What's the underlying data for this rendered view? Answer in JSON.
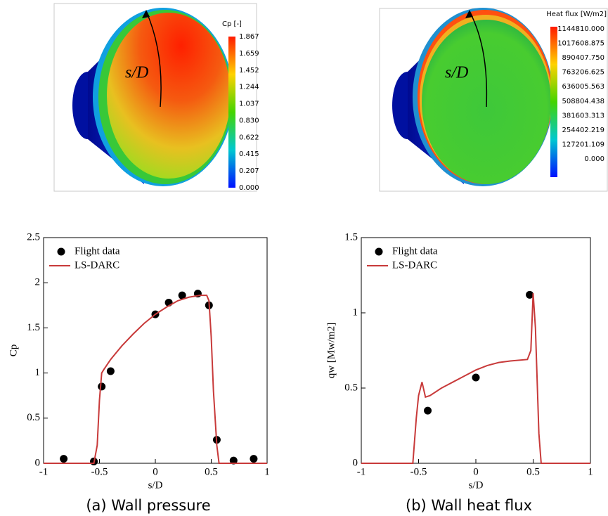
{
  "figures": [
    {
      "colorbar": {
        "title": "Cp [-]",
        "labels": [
          "1.867",
          "1.659",
          "1.452",
          "1.244",
          "1.037",
          "0.830",
          "0.622",
          "0.415",
          "0.207",
          "0.000"
        ]
      },
      "annotation": "s/D"
    },
    {
      "colorbar": {
        "title": "Heat flux [W/m2]",
        "labels": [
          "1144810.000",
          "1017608.875",
          "890407.750",
          "763206.625",
          "636005.563",
          "508804.438",
          "381603.313",
          "254402.219",
          "127201.109",
          "0.000"
        ]
      },
      "annotation": "s/D"
    }
  ],
  "chart_data": [
    {
      "type": "line",
      "caption": "(a) Wall pressure",
      "xlabel": "s/D",
      "ylabel": "Cp",
      "xlim": [
        -1,
        1
      ],
      "xticks": [
        -1,
        -0.5,
        0,
        0.5,
        1
      ],
      "ylim": [
        0,
        2.5
      ],
      "yticks": [
        0,
        0.5,
        1,
        1.5,
        2,
        2.5
      ],
      "legend": "upper left",
      "series": [
        {
          "name": "Flight data",
          "style": "markers",
          "color": "#000000",
          "x": [
            -0.82,
            -0.55,
            -0.48,
            -0.4,
            0,
            0.12,
            0.24,
            0.38,
            0.48,
            0.55,
            0.7,
            0.88
          ],
          "values": [
            0.05,
            0.02,
            0.85,
            1.02,
            1.65,
            1.78,
            1.86,
            1.88,
            1.75,
            0.26,
            0.03,
            0.05
          ]
        },
        {
          "name": "LS-DARC",
          "style": "line",
          "color": "#c83a3a",
          "x": [
            -1,
            -0.55,
            -0.52,
            -0.5,
            -0.48,
            -0.46,
            -0.4,
            -0.3,
            -0.2,
            -0.1,
            0,
            0.1,
            0.2,
            0.3,
            0.4,
            0.46,
            0.48,
            0.5,
            0.52,
            0.55,
            0.57,
            0.6,
            1
          ],
          "values": [
            0,
            0,
            0.2,
            0.7,
            1.0,
            1.04,
            1.15,
            1.3,
            1.43,
            1.55,
            1.65,
            1.73,
            1.8,
            1.84,
            1.86,
            1.86,
            1.8,
            1.4,
            0.8,
            0.2,
            0,
            0,
            0
          ]
        }
      ]
    },
    {
      "type": "line",
      "caption": "(b) Wall heat flux",
      "xlabel": "s/D",
      "ylabel": "qw [Mw/m2]",
      "xlim": [
        -1,
        1
      ],
      "xticks": [
        -1,
        -0.5,
        0,
        0.5,
        1
      ],
      "ylim": [
        0,
        1.5
      ],
      "yticks": [
        0,
        0.5,
        1,
        1.5
      ],
      "legend": "upper left",
      "series": [
        {
          "name": "Flight data",
          "style": "markers",
          "color": "#000000",
          "x": [
            -0.42,
            0,
            0.47
          ],
          "values": [
            0.35,
            0.57,
            1.12
          ]
        },
        {
          "name": "LS-DARC",
          "style": "line",
          "color": "#c83a3a",
          "x": [
            -1,
            -0.55,
            -0.52,
            -0.5,
            -0.47,
            -0.44,
            -0.4,
            -0.3,
            -0.2,
            -0.1,
            0,
            0.1,
            0.2,
            0.3,
            0.45,
            0.48,
            0.5,
            0.52,
            0.55,
            0.57,
            1
          ],
          "values": [
            0,
            0,
            0.3,
            0.45,
            0.54,
            0.44,
            0.45,
            0.5,
            0.54,
            0.58,
            0.62,
            0.65,
            0.67,
            0.68,
            0.69,
            0.75,
            1.13,
            0.9,
            0.2,
            0,
            0
          ]
        }
      ]
    }
  ]
}
